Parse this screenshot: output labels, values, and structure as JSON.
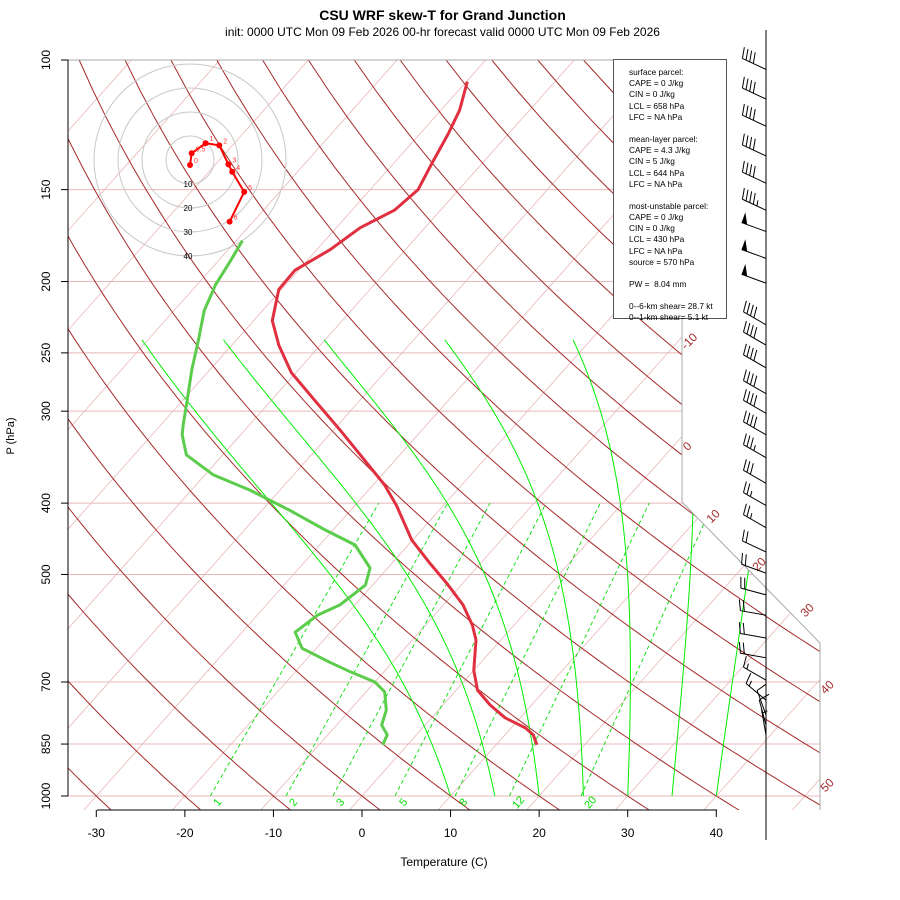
{
  "chart_data": {
    "type": "line",
    "title": "CSU WRF skew-T for Grand Junction",
    "subtitle": "init: 0000 UTC Mon 09 Feb 2026     00-hr forecast valid 0000 UTC Mon 09 Feb 2026",
    "xlabel": "Temperature (C)",
    "ylabel": "P (hPa)",
    "x_ticks": [
      -30,
      -20,
      -10,
      0,
      10,
      20,
      30,
      40
    ],
    "y_ticks": [
      100,
      150,
      200,
      250,
      300,
      400,
      500,
      700,
      850,
      1000
    ],
    "y_scale": "log",
    "ylim": [
      1000,
      100
    ],
    "series": [
      {
        "name": "temperature",
        "color": "#e03040",
        "p": [
          107,
          117,
          126,
          138,
          150,
          160,
          169,
          181,
          193,
          205,
          226,
          244,
          266,
          290,
          318,
          350,
          378,
          403,
          449,
          483,
          514,
          550,
          586,
          614,
          675,
          718,
          752,
          783,
          808,
          826,
          852
        ],
        "T": [
          -59.9,
          -57.9,
          -56.8,
          -55.7,
          -54.6,
          -55.2,
          -57.3,
          -58.5,
          -60.4,
          -60.3,
          -57.9,
          -54.7,
          -50.5,
          -45.1,
          -39.3,
          -33.4,
          -28.7,
          -25.3,
          -20.1,
          -15.7,
          -11.8,
          -7.8,
          -4.7,
          -2.8,
          0.0,
          2.4,
          5.3,
          8.3,
          11.6,
          13.2,
          14.6
        ]
      },
      {
        "name": "dewpoint",
        "color": "#5ccc4c",
        "p": [
          176,
          188,
          202,
          219,
          240,
          264,
          290,
          313,
          323,
          344,
          366,
          384,
          409,
          435,
          456,
          490,
          517,
          550,
          568,
          599,
          630,
          658,
          678,
          700,
          722,
          764,
          801,
          826,
          852
        ],
        "T": [
          -69.3,
          -68.6,
          -67.9,
          -66.6,
          -64.3,
          -62.0,
          -59.5,
          -57.5,
          -56.6,
          -54.1,
          -49.1,
          -43.4,
          -36.9,
          -30.9,
          -26.0,
          -22.0,
          -20.8,
          -21.7,
          -23.2,
          -24.0,
          -21.6,
          -17.1,
          -13.8,
          -10.0,
          -7.9,
          -5.9,
          -4.9,
          -3.3,
          -2.8
        ]
      }
    ],
    "dry_adiabat_labels": [
      "-10",
      "0",
      "10",
      "20",
      "30",
      "40",
      "50"
    ],
    "moist_adiabats_T1000": [
      10,
      15,
      20,
      25,
      30,
      35,
      40
    ],
    "mixing_ratio_labels": [
      "1",
      "2",
      "3",
      "5",
      "8",
      "12",
      "20"
    ],
    "winds_kt": [
      {
        "p": 103,
        "dir": 295,
        "speed": 40
      },
      {
        "p": 113,
        "dir": 295,
        "speed": 40
      },
      {
        "p": 123,
        "dir": 295,
        "speed": 40
      },
      {
        "p": 135,
        "dir": 295,
        "speed": 40
      },
      {
        "p": 147,
        "dir": 295,
        "speed": 40
      },
      {
        "p": 160,
        "dir": 295,
        "speed": 45
      },
      {
        "p": 171,
        "dir": 290,
        "speed": 50
      },
      {
        "p": 186,
        "dir": 290,
        "speed": 50
      },
      {
        "p": 201,
        "dir": 290,
        "speed": 50
      },
      {
        "p": 229,
        "dir": 300,
        "speed": 40
      },
      {
        "p": 244,
        "dir": 300,
        "speed": 40
      },
      {
        "p": 262,
        "dir": 300,
        "speed": 40
      },
      {
        "p": 284,
        "dir": 300,
        "speed": 40
      },
      {
        "p": 302,
        "dir": 300,
        "speed": 40
      },
      {
        "p": 323,
        "dir": 300,
        "speed": 40
      },
      {
        "p": 347,
        "dir": 300,
        "speed": 35
      },
      {
        "p": 376,
        "dir": 300,
        "speed": 30
      },
      {
        "p": 403,
        "dir": 300,
        "speed": 25
      },
      {
        "p": 432,
        "dir": 300,
        "speed": 25
      },
      {
        "p": 466,
        "dir": 295,
        "speed": 20
      },
      {
        "p": 498,
        "dir": 290,
        "speed": 20
      },
      {
        "p": 533,
        "dir": 285,
        "speed": 20
      },
      {
        "p": 568,
        "dir": 280,
        "speed": 20
      },
      {
        "p": 610,
        "dir": 280,
        "speed": 20
      },
      {
        "p": 649,
        "dir": 280,
        "speed": 20
      },
      {
        "p": 696,
        "dir": 300,
        "speed": 15
      },
      {
        "p": 741,
        "dir": 310,
        "speed": 15
      },
      {
        "p": 776,
        "dir": 340,
        "speed": 10
      },
      {
        "p": 801,
        "dir": 345,
        "speed": 10
      },
      {
        "p": 826,
        "dir": 350,
        "speed": 5
      }
    ],
    "hodograph": {
      "ring_labels": [
        "10",
        "20",
        "30",
        "40"
      ],
      "rings_kt": [
        10,
        20,
        30,
        40
      ],
      "points": [
        {
          "label": "0",
          "u": 0.0,
          "v": -2.1
        },
        {
          "label": "0.5",
          "u": 0.7,
          "v": 2.8
        },
        {
          "label": "1",
          "u": 6.5,
          "v": 7.0
        },
        {
          "label": "2",
          "u": 12.2,
          "v": 6.1
        },
        {
          "label": "3",
          "u": 16.0,
          "v": -1.8
        },
        {
          "label": "4",
          "u": 17.6,
          "v": -4.9
        },
        {
          "label": "5",
          "u": 22.6,
          "v": -13.3
        },
        {
          "label": "6",
          "u": 16.5,
          "v": -25.7
        }
      ]
    },
    "colors": {
      "dry_adiabat": "#a52a2a",
      "isotherm": "#e8b8b8",
      "moist_adiabat": "#00ee00",
      "mixing_ratio": "#00dd00",
      "hodograph": "#ff0000"
    }
  },
  "info_box": {
    "lines": [
      "surface parcel:",
      "CAPE = 0 J/kg",
      "CIN = 0 J/kg",
      "LCL = 658 hPa",
      "LFC = NA hPa",
      "",
      "mean-layer parcel:",
      "CAPE = 4.3 J/kg",
      "CIN = 5 J/kg",
      "LCL = 644 hPa",
      "LFC = NA hPa",
      "",
      "most-unstable parcel:",
      "CAPE = 0 J/kg",
      "CIN = 0 J/kg",
      "LCL = 430 hPa",
      "LFC = NA hPa",
      "source = 570 hPa",
      "",
      "PW =  8.04 mm",
      "",
      "0--6-km shear= 28.7 kt",
      "0--1-km shear= 5.1 kt"
    ]
  }
}
